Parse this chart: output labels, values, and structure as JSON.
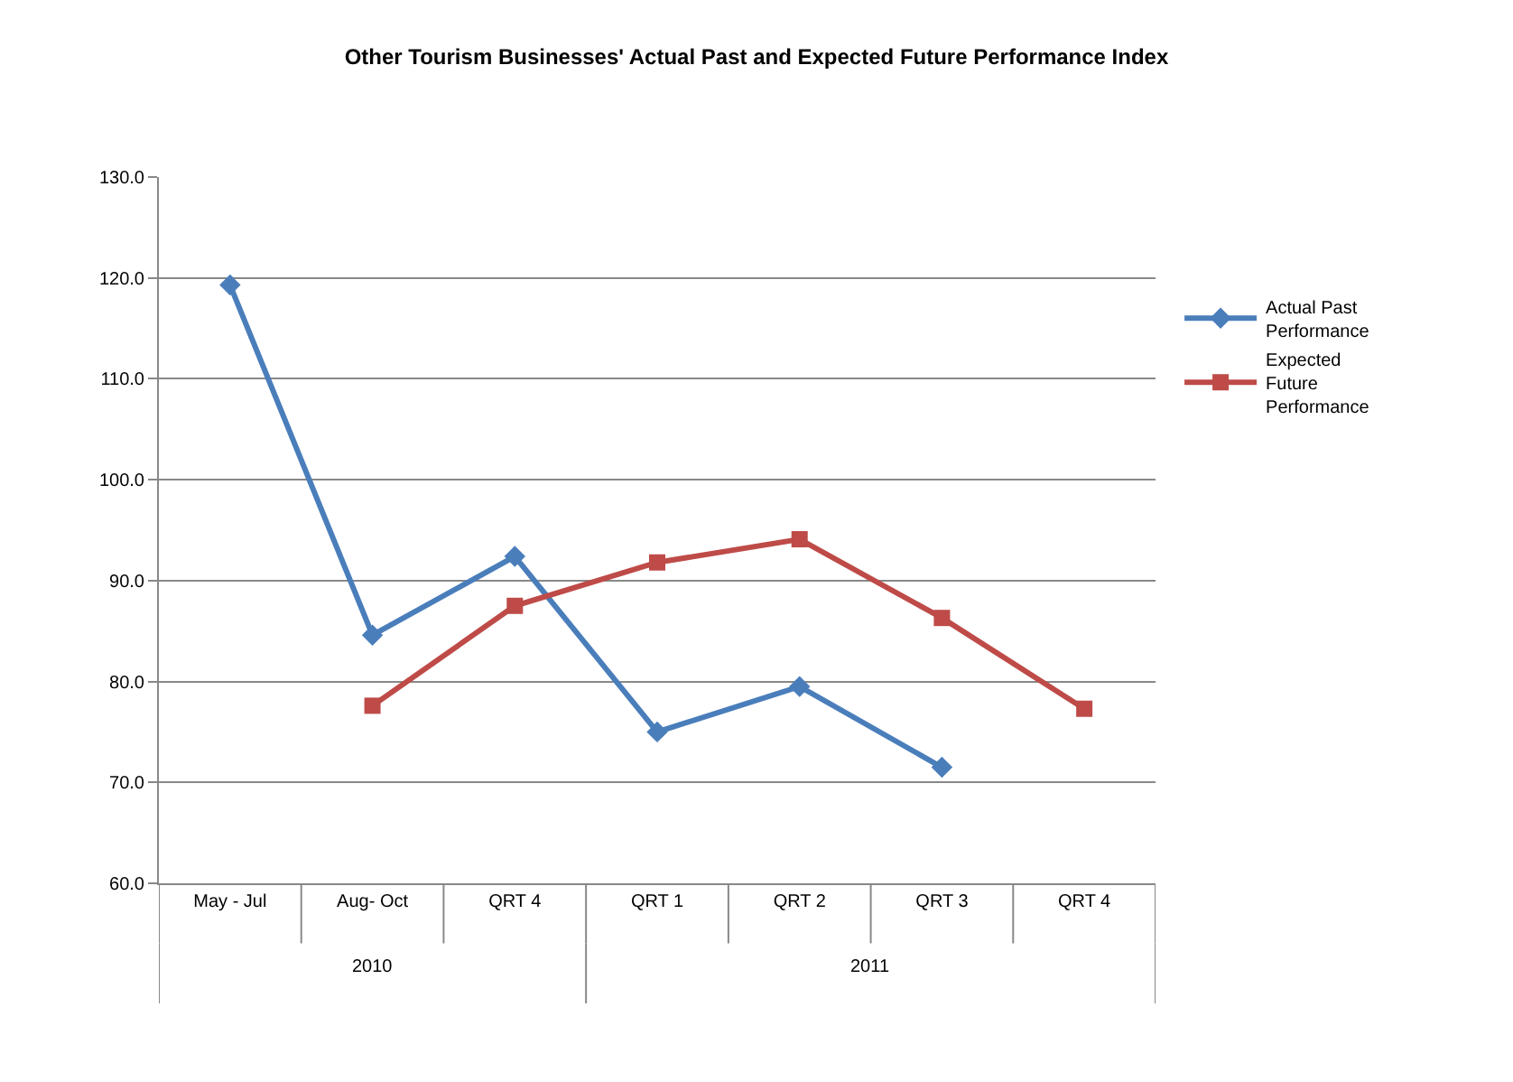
{
  "chart_data": {
    "type": "line",
    "title": "Other Tourism Businesses' Actual Past and Expected Future Performance Index",
    "categories": [
      "May - Jul",
      "Aug- Oct",
      "QRT 4",
      "QRT 1",
      "QRT 2",
      "QRT 3",
      "QRT 4"
    ],
    "series": [
      {
        "name": "Actual Past Performance",
        "color": "#4a7ebb",
        "marker": "diamond",
        "values": [
          119.3,
          84.6,
          92.4,
          75.0,
          79.5,
          71.5,
          null
        ]
      },
      {
        "name": "Expected Future Performance",
        "color": "#be4b48",
        "marker": "square",
        "values": [
          null,
          77.6,
          87.5,
          91.8,
          94.1,
          86.3,
          77.3
        ]
      }
    ],
    "ylim": [
      60,
      130
    ],
    "yticks": [
      {
        "value": 60,
        "label": "60.0"
      },
      {
        "value": 70,
        "label": "70.0"
      },
      {
        "value": 80,
        "label": "80.0"
      },
      {
        "value": 90,
        "label": "90.0"
      },
      {
        "value": 100,
        "label": "100.0"
      },
      {
        "value": 110,
        "label": "110.0"
      },
      {
        "value": 120,
        "label": "120.0"
      },
      {
        "value": 130,
        "label": "130.0"
      }
    ],
    "annotations": [
      "2010",
      "2011"
    ],
    "grid": "y",
    "legend": "right",
    "line_style": "solid"
  }
}
